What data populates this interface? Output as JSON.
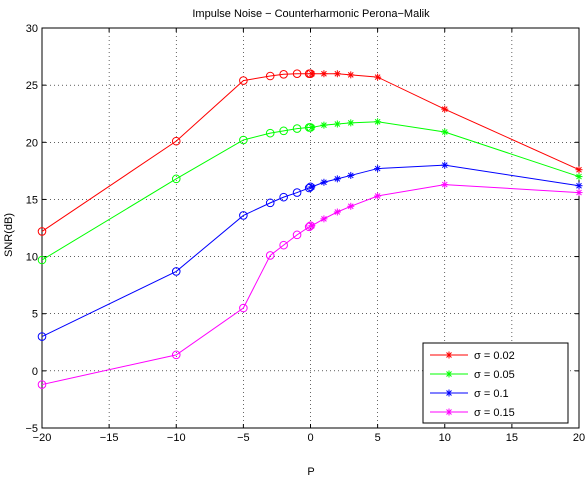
{
  "chart_data": {
    "type": "line",
    "title": "Impulse Noise − Counterharmonic Perona−Malik",
    "xlabel": "P",
    "ylabel": "SNR(dB)",
    "xlim": [
      -20,
      20
    ],
    "ylim": [
      -5,
      30
    ],
    "xticks": [
      -20,
      -15,
      -10,
      -5,
      0,
      5,
      10,
      15,
      20
    ],
    "yticks": [
      -5,
      0,
      5,
      10,
      15,
      20,
      25,
      30
    ],
    "xtick_labels": [
      "−20",
      "−15",
      "−10",
      "−5",
      "0",
      "5",
      "10",
      "15",
      "20"
    ],
    "ytick_labels": [
      "−5",
      "0",
      "5",
      "10",
      "15",
      "20",
      "25",
      "30"
    ],
    "grid": true,
    "legend_position": "bottom-right",
    "series": [
      {
        "name": "σ = 0.02",
        "color": "#ff0000",
        "points": [
          {
            "x": -20,
            "y": 12.2,
            "marker": "circle"
          },
          {
            "x": -10,
            "y": 20.1,
            "marker": "circle"
          },
          {
            "x": -5,
            "y": 25.4,
            "marker": "circle"
          },
          {
            "x": -3,
            "y": 25.8,
            "marker": "circle"
          },
          {
            "x": -2,
            "y": 25.95,
            "marker": "circle"
          },
          {
            "x": -1,
            "y": 26.0,
            "marker": "circle"
          },
          {
            "x": -0.1,
            "y": 26.0,
            "marker": "circle"
          },
          {
            "x": 0,
            "y": 26.0,
            "marker": "circle"
          },
          {
            "x": 0.1,
            "y": 26.0,
            "marker": "star"
          },
          {
            "x": 1,
            "y": 26.0,
            "marker": "star"
          },
          {
            "x": 2,
            "y": 26.0,
            "marker": "star"
          },
          {
            "x": 3,
            "y": 25.9,
            "marker": "star"
          },
          {
            "x": 5,
            "y": 25.7,
            "marker": "star"
          },
          {
            "x": 10,
            "y": 22.9,
            "marker": "star"
          },
          {
            "x": 20,
            "y": 17.6,
            "marker": "star"
          }
        ]
      },
      {
        "name": "σ = 0.05",
        "color": "#00ff00",
        "points": [
          {
            "x": -20,
            "y": 9.7,
            "marker": "circle"
          },
          {
            "x": -10,
            "y": 16.8,
            "marker": "circle"
          },
          {
            "x": -5,
            "y": 20.2,
            "marker": "circle"
          },
          {
            "x": -3,
            "y": 20.8,
            "marker": "circle"
          },
          {
            "x": -2,
            "y": 21.0,
            "marker": "circle"
          },
          {
            "x": -1,
            "y": 21.2,
            "marker": "circle"
          },
          {
            "x": -0.1,
            "y": 21.3,
            "marker": "circle"
          },
          {
            "x": 0,
            "y": 21.3,
            "marker": "circle"
          },
          {
            "x": 0.1,
            "y": 21.3,
            "marker": "star"
          },
          {
            "x": 1,
            "y": 21.5,
            "marker": "star"
          },
          {
            "x": 2,
            "y": 21.6,
            "marker": "star"
          },
          {
            "x": 3,
            "y": 21.7,
            "marker": "star"
          },
          {
            "x": 5,
            "y": 21.8,
            "marker": "star"
          },
          {
            "x": 10,
            "y": 20.9,
            "marker": "star"
          },
          {
            "x": 20,
            "y": 17.0,
            "marker": "star"
          }
        ]
      },
      {
        "name": "σ = 0.1",
        "color": "#0000ff",
        "points": [
          {
            "x": -20,
            "y": 3.0,
            "marker": "circle"
          },
          {
            "x": -10,
            "y": 8.7,
            "marker": "circle"
          },
          {
            "x": -5,
            "y": 13.6,
            "marker": "circle"
          },
          {
            "x": -3,
            "y": 14.7,
            "marker": "circle"
          },
          {
            "x": -2,
            "y": 15.2,
            "marker": "circle"
          },
          {
            "x": -1,
            "y": 15.6,
            "marker": "circle"
          },
          {
            "x": -0.1,
            "y": 16.0,
            "marker": "circle"
          },
          {
            "x": 0,
            "y": 16.1,
            "marker": "circle"
          },
          {
            "x": 0.1,
            "y": 16.1,
            "marker": "star"
          },
          {
            "x": 1,
            "y": 16.5,
            "marker": "star"
          },
          {
            "x": 2,
            "y": 16.8,
            "marker": "star"
          },
          {
            "x": 3,
            "y": 17.1,
            "marker": "star"
          },
          {
            "x": 5,
            "y": 17.7,
            "marker": "star"
          },
          {
            "x": 10,
            "y": 18.0,
            "marker": "star"
          },
          {
            "x": 20,
            "y": 16.2,
            "marker": "star"
          }
        ]
      },
      {
        "name": "σ = 0.15",
        "color": "#ff00ff",
        "points": [
          {
            "x": -20,
            "y": -1.2,
            "marker": "circle"
          },
          {
            "x": -10,
            "y": 1.4,
            "marker": "circle"
          },
          {
            "x": -5,
            "y": 5.5,
            "marker": "circle"
          },
          {
            "x": -3,
            "y": 10.1,
            "marker": "circle"
          },
          {
            "x": -2,
            "y": 11.0,
            "marker": "circle"
          },
          {
            "x": -1,
            "y": 11.9,
            "marker": "circle"
          },
          {
            "x": -0.1,
            "y": 12.6,
            "marker": "circle"
          },
          {
            "x": 0,
            "y": 12.7,
            "marker": "circle"
          },
          {
            "x": 0.1,
            "y": 12.7,
            "marker": "star"
          },
          {
            "x": 1,
            "y": 13.3,
            "marker": "star"
          },
          {
            "x": 2,
            "y": 13.9,
            "marker": "star"
          },
          {
            "x": 3,
            "y": 14.4,
            "marker": "star"
          },
          {
            "x": 5,
            "y": 15.3,
            "marker": "star"
          },
          {
            "x": 10,
            "y": 16.3,
            "marker": "star"
          },
          {
            "x": 20,
            "y": 15.6,
            "marker": "star"
          }
        ]
      }
    ]
  }
}
